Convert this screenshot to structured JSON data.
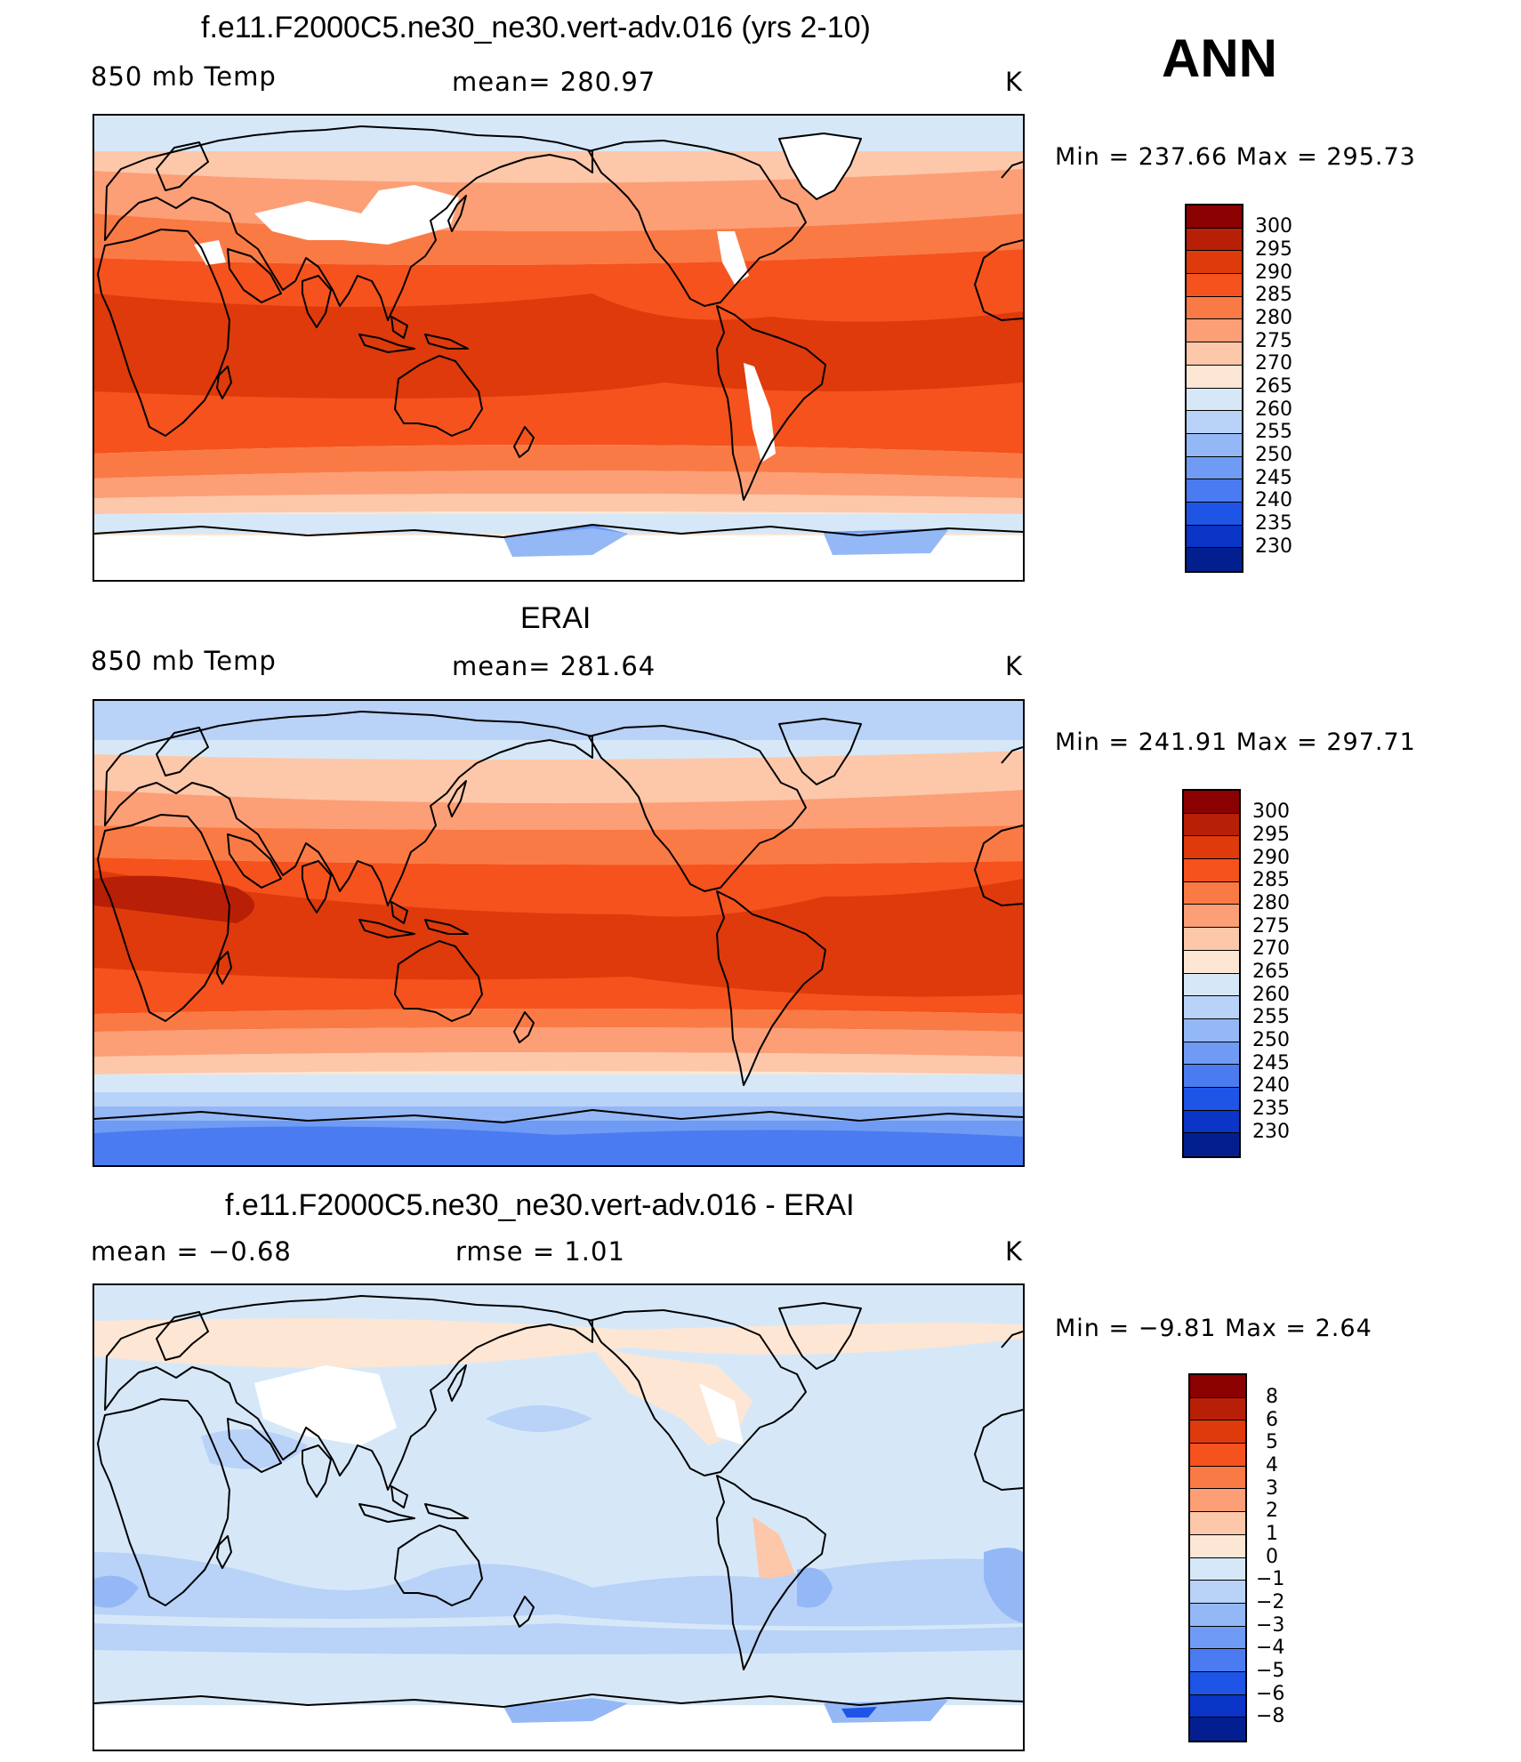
{
  "header": {
    "season": "ANN",
    "units": "K"
  },
  "panels": [
    {
      "title": "f.e11.F2000C5.ne30_ne30.vert-adv.016 (yrs 2-10)",
      "left": "850 mb Temp",
      "center": "mean=  280.97",
      "right": "K",
      "minmax": "Min  =  237.66  Max  =  295.73"
    },
    {
      "title": "ERAI",
      "left": "850 mb Temp",
      "center": "mean=  281.64",
      "right": "K",
      "minmax": "Min  =  241.91  Max  =  297.71"
    },
    {
      "title": "f.e11.F2000C5.ne30_ne30.vert-adv.016 - ERAI",
      "left": "mean  =    −0.68",
      "center": "rmse  =     1.01",
      "right": "K",
      "minmax": "Min  =    −9.81  Max  =     2.64"
    }
  ],
  "colorbars": [
    {
      "labels": [
        "300",
        "295",
        "290",
        "285",
        "280",
        "275",
        "270",
        "265",
        "260",
        "255",
        "250",
        "245",
        "240",
        "235",
        "230"
      ]
    },
    {
      "labels": [
        "300",
        "295",
        "290",
        "285",
        "280",
        "275",
        "270",
        "265",
        "260",
        "255",
        "250",
        "245",
        "240",
        "235",
        "230"
      ]
    },
    {
      "labels": [
        "8",
        "6",
        "5",
        "4",
        "3",
        "2",
        "1",
        "0",
        "−1",
        "−2",
        "−3",
        "−4",
        "−5",
        "−6",
        "−8"
      ]
    }
  ],
  "colors": {
    "palette": [
      "#8b0000",
      "#b81f07",
      "#de3a0b",
      "#f5521d",
      "#fa7a45",
      "#fc9f76",
      "#fdc7aa",
      "#fde6d4",
      "#d6e8f8",
      "#b8d2f8",
      "#94b8f6",
      "#6f9bf4",
      "#4a7bf0",
      "#1f55e6",
      "#0a35c7",
      "#031f8f"
    ]
  }
}
